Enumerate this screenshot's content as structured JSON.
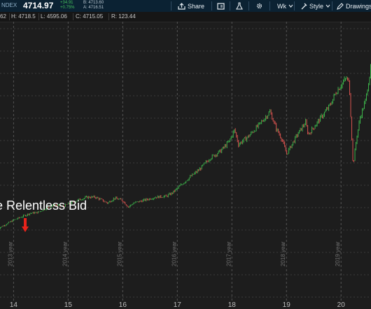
{
  "header": {
    "symbol": "NDEX",
    "last": "4714.97",
    "change": "+34.91",
    "change_pct": "+0.75%",
    "bid": "B: 4713.60",
    "ask": "A: 4716.51",
    "share_label": "Share",
    "period_label": "Wk",
    "style_label": "Style",
    "drawings_label": "Drawings"
  },
  "infobar": {
    "open_fragment": "62",
    "high": "H: 4718.5",
    "low": "L: 4595.06",
    "close": "C: 4715.05",
    "range": "R: 123.44"
  },
  "annotation": {
    "text": "e Relentless Bid",
    "arrow_color": "#e8231b"
  },
  "chart_data": {
    "type": "line",
    "style": "candlestick (weekly)",
    "x_tick_labels": [
      "14",
      "15",
      "16",
      "17",
      "18",
      "19",
      "20"
    ],
    "year_labels": [
      "2013 year",
      "2014 year",
      "2015 year",
      "2016 year",
      "2017 year",
      "2018 year",
      "2019 year"
    ],
    "x_range": [
      "2013.7",
      "2020.6"
    ],
    "y_range": [
      920,
      4850
    ],
    "grid": true,
    "year_separators": true,
    "colors": {
      "up": "#3cb34a",
      "down": "#d9534f",
      "grid": "#3c3c3c",
      "separator": "#555555"
    },
    "series": [
      {
        "x": [
          2013.7,
          2013.85,
          2014.0,
          2014.15,
          2014.3,
          2014.45,
          2014.6,
          2014.75,
          2014.9,
          2015.05,
          2015.2,
          2015.35,
          2015.5,
          2015.62,
          2015.72,
          2015.85,
          2016.0,
          2016.1,
          2016.2,
          2016.4,
          2016.6,
          2016.8,
          2016.9,
          2017.05,
          2017.2,
          2017.4,
          2017.6,
          2017.8,
          2017.95,
          2018.05,
          2018.12,
          2018.3,
          2018.5,
          2018.7,
          2018.8,
          2018.92,
          2019.0,
          2019.2,
          2019.35,
          2019.4,
          2019.6,
          2019.8,
          2019.9,
          2020.02,
          2020.1,
          2020.15,
          2020.19,
          2020.22,
          2020.28,
          2020.35,
          2020.45,
          2020.55,
          2020.6
        ],
        "y": [
          970,
          1060,
          1150,
          1220,
          1290,
          1310,
          1400,
          1460,
          1430,
          1500,
          1570,
          1620,
          1620,
          1560,
          1500,
          1600,
          1550,
          1420,
          1500,
          1560,
          1620,
          1640,
          1700,
          1850,
          2000,
          2180,
          2420,
          2570,
          2760,
          3000,
          2700,
          2860,
          3100,
          3370,
          3050,
          2800,
          2500,
          2900,
          3150,
          2900,
          3200,
          3500,
          3750,
          3950,
          4050,
          3950,
          3000,
          2250,
          2800,
          3250,
          3600,
          4300,
          4715
        ]
      }
    ]
  }
}
